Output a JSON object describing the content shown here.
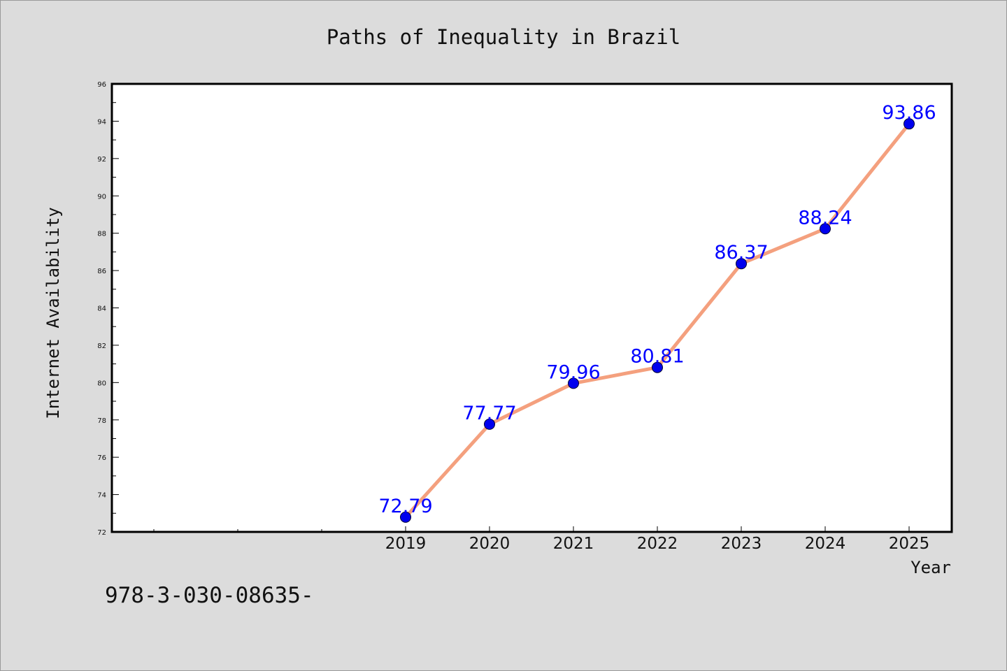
{
  "chart_data": {
    "type": "line",
    "title": "Paths of Inequality in Brazil",
    "xlabel": "Year",
    "ylabel": "Internet Availability",
    "x": [
      "2019",
      "2020",
      "2021",
      "2022",
      "2023",
      "2024",
      "2025"
    ],
    "series": [
      {
        "values": [
          72.79,
          77.77,
          79.96,
          80.81,
          86.37,
          88.24,
          93.86
        ],
        "data_labels": [
          "72.79",
          "77.77",
          "79.96",
          "80.81",
          "86.37",
          "88.24",
          "93.86"
        ],
        "line_color": "#f4a07e",
        "marker_color": "#0000ee"
      }
    ],
    "ylim": [
      72,
      96
    ],
    "yticks": [
      "72",
      "74",
      "76",
      "78",
      "80",
      "82",
      "84",
      "86",
      "88",
      "90",
      "92",
      "94",
      "96"
    ],
    "grid": false,
    "legend": "none"
  },
  "footnote": "978-3-030-08635-",
  "colors": {
    "background": "#dcdcdc",
    "plot_background": "#ffffff",
    "data_label": "#0000ff"
  }
}
